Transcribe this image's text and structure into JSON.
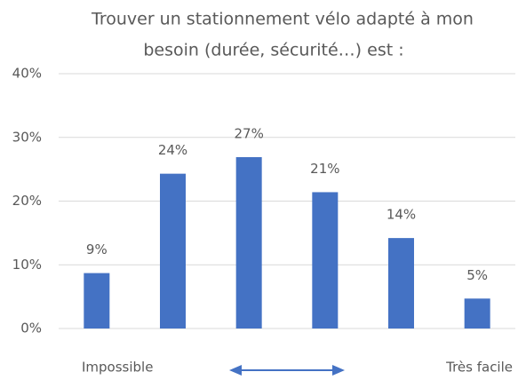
{
  "chart_data": {
    "type": "bar",
    "title": [
      "Trouver un stationnement vélo adapté à mon",
      "besoin (durée, sécurité…) est :"
    ],
    "categories": [
      "Impossible",
      null,
      null,
      null,
      null,
      "Très facile"
    ],
    "values": [
      8.7,
      24.3,
      26.9,
      21.4,
      14.2,
      4.7
    ],
    "value_labels": [
      "9%",
      "24%",
      "27%",
      "21%",
      "14%",
      "5%"
    ],
    "color": "#4472c4",
    "ylim": [
      0,
      40
    ],
    "yticks": [
      {
        "value": 0,
        "label": "0%"
      },
      {
        "value": 10,
        "label": "10%"
      },
      {
        "value": 20,
        "label": "20%"
      },
      {
        "value": 30,
        "label": "30%"
      },
      {
        "value": 40,
        "label": "40%"
      }
    ],
    "grid": true
  }
}
